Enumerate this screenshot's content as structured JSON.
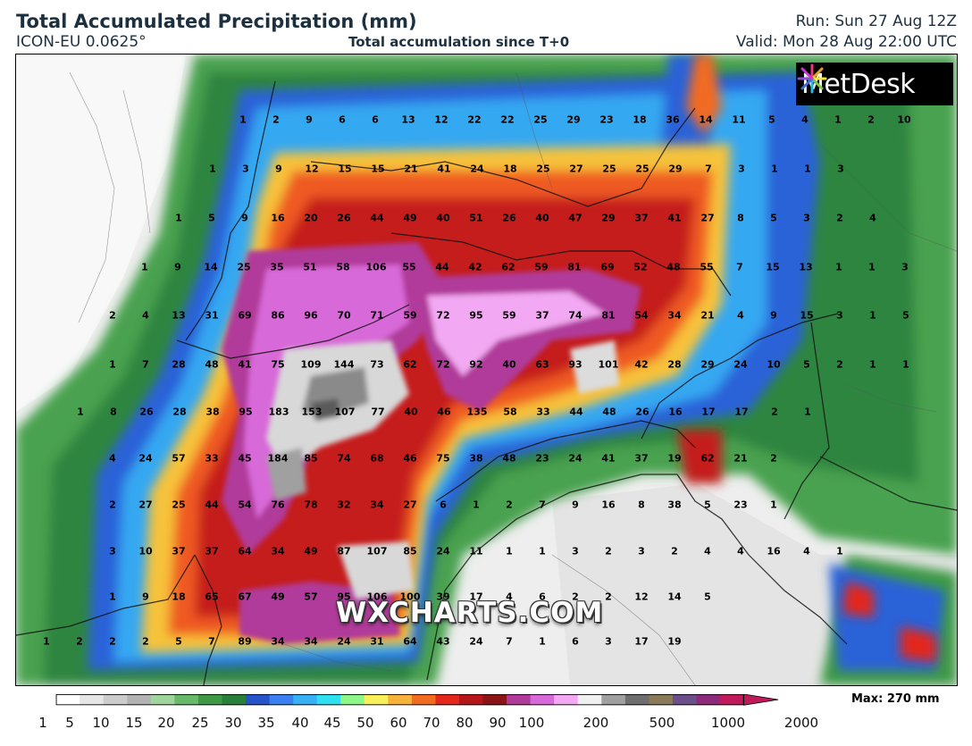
{
  "header": {
    "title": "Total Accumulated Precipitation (mm)",
    "model": "ICON-EU 0.0625°",
    "subtitle": "Total accumulation since T+0",
    "run": "Run: Sun 27 Aug 12Z",
    "valid": "Valid: Mon 28 Aug 22:00 UTC"
  },
  "logo": {
    "text": "MetDesk",
    "icon": "metdesk-starburst-icon"
  },
  "watermark": "WXCHARTS.COM",
  "colorbar": {
    "ticks": [
      "1",
      "5",
      "10",
      "15",
      "20",
      "25",
      "30",
      "35",
      "40",
      "45",
      "50",
      "60",
      "70",
      "80",
      "90",
      "100",
      "200",
      "500",
      "1000",
      "2000"
    ],
    "max_label": "Max: 270 mm",
    "colors": [
      "#ffffff",
      "#e6e6e6",
      "#cccccc",
      "#b3b3b3",
      "#9fd49c",
      "#69b96a",
      "#3e9a45",
      "#2a7f3a",
      "#2553c9",
      "#3b7ff0",
      "#37b0f5",
      "#2fe0f0",
      "#8ef78a",
      "#f7f05a",
      "#f7b23a",
      "#f26b21",
      "#e3271b",
      "#b4161a",
      "#8c1416",
      "#b03a9a",
      "#d869d8",
      "#f2a8f2",
      "#f0f0f0",
      "#a0a0a0",
      "#6e6e6e",
      "#8a7a5a",
      "#6b4e8a",
      "#8d2a7a",
      "#c01a5a"
    ]
  },
  "grid_values": [
    [
      "1",
      "2",
      "9",
      "6",
      "6",
      "13",
      "12",
      "22",
      "22",
      "25",
      "29",
      "23",
      "18",
      "36",
      "14",
      "11",
      "5",
      "4",
      "1",
      "2",
      "10"
    ],
    [
      "1",
      "3",
      "9",
      "12",
      "15",
      "15",
      "21",
      "41",
      "24",
      "18",
      "25",
      "27",
      "25",
      "25",
      "29",
      "7",
      "3",
      "1",
      "1",
      "3"
    ],
    [
      "1",
      "5",
      "9",
      "16",
      "20",
      "26",
      "44",
      "49",
      "40",
      "51",
      "26",
      "40",
      "47",
      "29",
      "37",
      "41",
      "27",
      "8",
      "5",
      "3",
      "2",
      "4"
    ],
    [
      "1",
      "9",
      "14",
      "25",
      "35",
      "51",
      "58",
      "106",
      "55",
      "44",
      "42",
      "62",
      "59",
      "81",
      "69",
      "52",
      "48",
      "55",
      "7",
      "15",
      "13",
      "1",
      "1",
      "3"
    ],
    [
      "2",
      "4",
      "13",
      "31",
      "69",
      "86",
      "96",
      "70",
      "71",
      "59",
      "72",
      "95",
      "59",
      "37",
      "74",
      "81",
      "54",
      "34",
      "21",
      "4",
      "9",
      "15",
      "3",
      "1",
      "5"
    ],
    [
      "1",
      "7",
      "28",
      "48",
      "41",
      "75",
      "109",
      "144",
      "73",
      "62",
      "72",
      "92",
      "40",
      "63",
      "93",
      "101",
      "42",
      "28",
      "29",
      "24",
      "10",
      "5",
      "2",
      "1",
      "1"
    ],
    [
      "1",
      "8",
      "26",
      "28",
      "38",
      "95",
      "183",
      "153",
      "107",
      "77",
      "40",
      "46",
      "135",
      "58",
      "33",
      "44",
      "48",
      "26",
      "16",
      "17",
      "17",
      "2",
      "1"
    ],
    [
      "4",
      "24",
      "57",
      "33",
      "45",
      "184",
      "85",
      "74",
      "68",
      "46",
      "75",
      "38",
      "48",
      "23",
      "24",
      "41",
      "37",
      "19",
      "62",
      "21",
      "2"
    ],
    [
      "2",
      "27",
      "25",
      "44",
      "54",
      "76",
      "78",
      "32",
      "34",
      "27",
      "6",
      "1",
      "2",
      "7",
      "9",
      "16",
      "8",
      "38",
      "5",
      "23",
      "1"
    ],
    [
      "3",
      "10",
      "37",
      "37",
      "64",
      "34",
      "49",
      "87",
      "107",
      "85",
      "24",
      "11",
      "1",
      "1",
      "3",
      "2",
      "3",
      "2",
      "4",
      "4",
      "16",
      "4",
      "1"
    ],
    [
      "1",
      "9",
      "18",
      "65",
      "67",
      "49",
      "57",
      "95",
      "106",
      "100",
      "39",
      "17",
      "4",
      "6",
      "2",
      "2",
      "12",
      "14",
      "5"
    ],
    [
      "1",
      "2",
      "2",
      "2",
      "5",
      "7",
      "89",
      "34",
      "34",
      "24",
      "31",
      "64",
      "43",
      "24",
      "7",
      "1",
      "6",
      "3",
      "17",
      "19"
    ]
  ]
}
